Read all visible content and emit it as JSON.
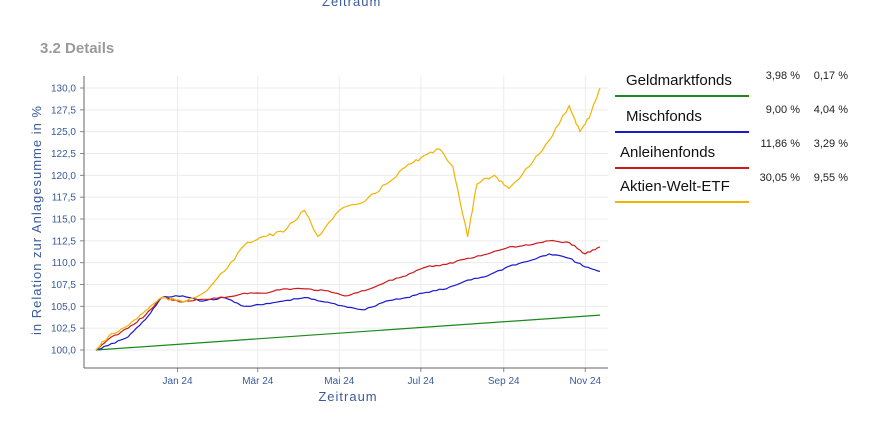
{
  "top_axis_label": "Zeitraum",
  "section_title": "3.2 Details",
  "chart_data": {
    "type": "line",
    "xlabel": "Zeitraum",
    "ylabel": "in Relation zur Anlagesumme in %",
    "x_ticks": [
      "Jan 24",
      "Mär 24",
      "Mai 24",
      "Jul 24",
      "Sep 24",
      "Nov 24"
    ],
    "y_ticks": [
      "100,0",
      "102,5",
      "105,0",
      "107,5",
      "110,0",
      "112,5",
      "115,0",
      "117,5",
      "120,0",
      "122,5",
      "125,0",
      "127,5",
      "130,0"
    ],
    "ylim": [
      99,
      131
    ],
    "xrange": [
      "2023-11-01",
      "2024-11-12"
    ],
    "grid": true,
    "series": [
      {
        "name": "Geldmarktfonds",
        "color": "#1a8a1a",
        "x": [
          "2023-11-01",
          "2024-11-12"
        ],
        "values": [
          100.0,
          104.0
        ]
      },
      {
        "name": "Mischfonds",
        "color": "#1a1acc",
        "x": [
          "2023-11-01",
          "2023-11-10",
          "2023-11-25",
          "2023-12-08",
          "2023-12-20",
          "2024-01-05",
          "2024-01-20",
          "2024-02-05",
          "2024-02-20",
          "2024-03-05",
          "2024-03-20",
          "2024-04-05",
          "2024-04-20",
          "2024-05-05",
          "2024-05-20",
          "2024-06-05",
          "2024-06-20",
          "2024-07-05",
          "2024-07-20",
          "2024-08-05",
          "2024-08-20",
          "2024-09-05",
          "2024-09-20",
          "2024-10-05",
          "2024-10-20",
          "2024-11-01",
          "2024-11-12"
        ],
        "values": [
          100.0,
          100.5,
          101.5,
          103.5,
          106.0,
          106.2,
          105.6,
          106.0,
          105.0,
          105.2,
          105.6,
          106.0,
          105.5,
          105.0,
          104.6,
          105.6,
          106.0,
          106.6,
          107.0,
          108.0,
          108.5,
          109.6,
          110.2,
          111.0,
          110.5,
          109.5,
          109.0
        ]
      },
      {
        "name": "Anleihenfonds",
        "color": "#cc1a1a",
        "x": [
          "2023-11-01",
          "2023-11-10",
          "2023-11-25",
          "2023-12-08",
          "2023-12-20",
          "2024-01-05",
          "2024-01-20",
          "2024-02-05",
          "2024-02-20",
          "2024-03-05",
          "2024-03-20",
          "2024-04-05",
          "2024-04-20",
          "2024-05-05",
          "2024-05-20",
          "2024-06-05",
          "2024-06-20",
          "2024-07-05",
          "2024-07-20",
          "2024-08-05",
          "2024-08-20",
          "2024-09-05",
          "2024-09-20",
          "2024-10-05",
          "2024-10-20",
          "2024-11-01",
          "2024-11-12"
        ],
        "values": [
          100.0,
          101.2,
          102.5,
          104.0,
          106.0,
          105.5,
          105.8,
          106.0,
          106.5,
          106.5,
          107.0,
          107.0,
          106.8,
          106.2,
          106.8,
          107.8,
          108.5,
          109.5,
          109.8,
          110.5,
          111.0,
          111.8,
          112.0,
          112.5,
          112.3,
          111.0,
          111.8
        ]
      },
      {
        "name": "Aktien-Welt-ETF",
        "color": "#f0b400",
        "x": [
          "2023-11-01",
          "2023-11-10",
          "2023-11-25",
          "2023-12-08",
          "2023-12-20",
          "2024-01-05",
          "2024-01-20",
          "2024-02-05",
          "2024-02-20",
          "2024-03-05",
          "2024-03-20",
          "2024-04-05",
          "2024-04-15",
          "2024-05-01",
          "2024-05-20",
          "2024-06-05",
          "2024-06-20",
          "2024-07-01",
          "2024-07-15",
          "2024-07-25",
          "2024-08-05",
          "2024-08-12",
          "2024-08-25",
          "2024-09-05",
          "2024-09-20",
          "2024-10-05",
          "2024-10-20",
          "2024-10-28",
          "2024-11-05",
          "2024-11-12"
        ],
        "values": [
          100.0,
          101.5,
          102.8,
          104.5,
          106.0,
          105.5,
          106.5,
          109.0,
          112.0,
          113.0,
          113.5,
          116.0,
          113.0,
          116.0,
          117.0,
          119.0,
          121.0,
          122.0,
          123.0,
          121.0,
          113.0,
          119.0,
          120.0,
          118.5,
          121.0,
          124.0,
          128.0,
          125.0,
          127.0,
          130.0
        ]
      }
    ]
  },
  "legend": [
    {
      "name": "Geldmarktfonds",
      "color": "#1a8a1a",
      "v1": "3,98 %",
      "v2": "0,17 %"
    },
    {
      "name": "Mischfonds",
      "color": "#1a1acc",
      "v1": "9,00 %",
      "v2": "4,04 %"
    },
    {
      "name": "Anleihenfonds",
      "color": "#cc1a1a",
      "v1": "11,86 %",
      "v2": "3,29 %"
    },
    {
      "name": "Aktien-Welt-ETF",
      "color": "#f0b400",
      "v1": "30,05 %",
      "v2": "9,55 %"
    }
  ]
}
